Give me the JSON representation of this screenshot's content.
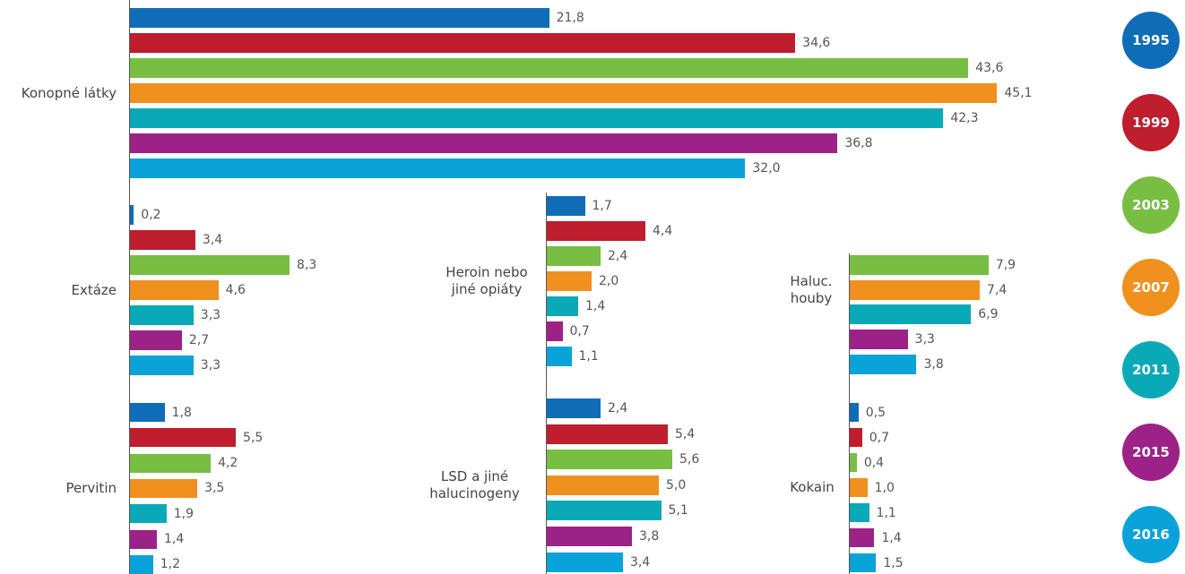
{
  "chart_data": {
    "type": "bar",
    "categories": [
      "Konopné látky",
      "Extáze",
      "Pervitin",
      "Heroin nebo jiné opiáty",
      "LSD a jiné halucinogeny",
      "Haluc. houby",
      "Kokain"
    ],
    "series": [
      {
        "name": "1995",
        "color": "#0f6db8",
        "values": [
          21.8,
          0.2,
          1.8,
          1.7,
          2.4,
          null,
          0.5
        ],
        "value_labels": [
          "21,8",
          "0,2",
          "1,8",
          "1,7",
          "2,4",
          null,
          "0,5"
        ]
      },
      {
        "name": "1999",
        "color": "#be1e2d",
        "values": [
          34.6,
          3.4,
          5.5,
          4.4,
          5.4,
          null,
          0.7
        ],
        "value_labels": [
          "34,6",
          "3,4",
          "5,5",
          "4,4",
          "5,4",
          null,
          "0,7"
        ]
      },
      {
        "name": "2003",
        "color": "#78be43",
        "values": [
          43.6,
          8.3,
          4.2,
          2.4,
          5.6,
          7.9,
          0.4
        ],
        "value_labels": [
          "43,6",
          "8,3",
          "4,2",
          "2,4",
          "5,6",
          "7,9",
          "0,4"
        ]
      },
      {
        "name": "2007",
        "color": "#f0901f",
        "values": [
          45.1,
          4.6,
          3.5,
          2.0,
          5.0,
          7.4,
          1.0
        ],
        "value_labels": [
          "45,1",
          "4,6",
          "3,5",
          "2,0",
          "5,0",
          "7,4",
          "1,0"
        ]
      },
      {
        "name": "2011",
        "color": "#0aa9b7",
        "values": [
          42.3,
          3.3,
          1.9,
          1.4,
          5.1,
          6.9,
          1.1
        ],
        "value_labels": [
          "42,3",
          "3,3",
          "1,9",
          "1,4",
          "5,1",
          "6,9",
          "1,1"
        ]
      },
      {
        "name": "2015",
        "color": "#9c2288",
        "values": [
          36.8,
          2.7,
          1.4,
          0.7,
          3.8,
          3.3,
          1.4
        ],
        "value_labels": [
          "36,8",
          "2,7",
          "1,4",
          "0,7",
          "3,8",
          "3,3",
          "1,4"
        ]
      },
      {
        "name": "2016",
        "color": "#0aa3d9",
        "values": [
          32.0,
          3.3,
          1.2,
          1.1,
          3.4,
          3.8,
          1.5
        ],
        "value_labels": [
          "32,0",
          "3,3",
          "1,2",
          "1,1",
          "3,4",
          "3,8",
          "1,5"
        ]
      }
    ]
  }
}
